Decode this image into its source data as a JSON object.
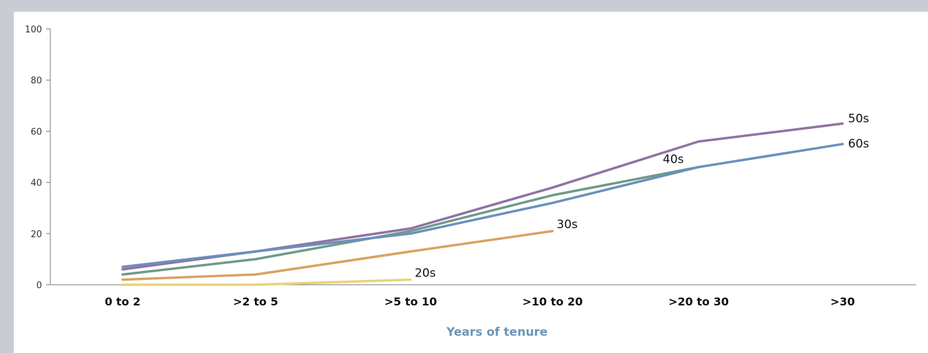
{
  "chart_data": {
    "type": "line",
    "title": "",
    "xlabel": "Years of tenure",
    "ylabel": "",
    "categories": [
      "0 to 2",
      ">2 to 5",
      ">5 to 10",
      ">10 to 20",
      ">20 to 30",
      ">30"
    ],
    "ylim": [
      0,
      100
    ],
    "yticks": [
      0,
      20,
      40,
      60,
      80,
      100
    ],
    "grid": false,
    "legend": "none",
    "series": [
      {
        "name": "20s",
        "color": "#e8d27a",
        "values": [
          0,
          0,
          2,
          null,
          null,
          null
        ]
      },
      {
        "name": "30s",
        "color": "#d9a260",
        "values": [
          2,
          4,
          13,
          21,
          null,
          null
        ]
      },
      {
        "name": "40s",
        "color": "#6f9a88",
        "values": [
          4,
          10,
          21,
          35,
          46,
          null
        ]
      },
      {
        "name": "50s",
        "color": "#8f73a3",
        "values": [
          6,
          13,
          22,
          38,
          56,
          63
        ]
      },
      {
        "name": "60s",
        "color": "#6a8fbd",
        "values": [
          7,
          13,
          20,
          32,
          46,
          55
        ]
      }
    ]
  }
}
